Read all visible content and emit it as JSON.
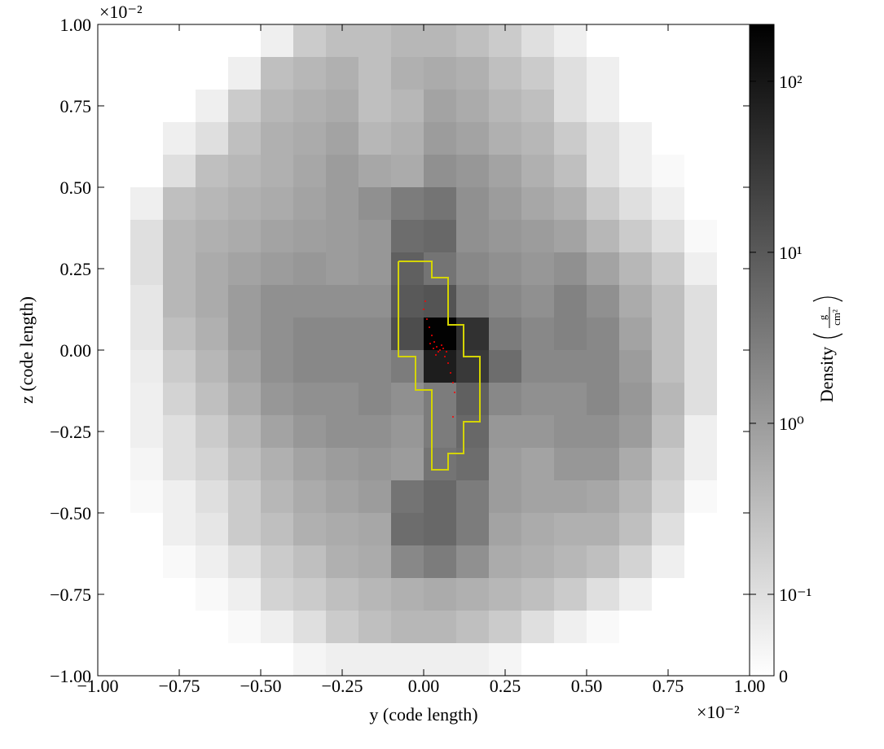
{
  "chart_data": {
    "type": "heatmap",
    "xlabel": "y  (code length)",
    "ylabel": "z  (code length)",
    "x_offset_text": "×10⁻²",
    "y_offset_text": "×10⁻²",
    "xlim": [
      -1,
      1
    ],
    "ylim": [
      -1,
      1
    ],
    "xticks": [
      {
        "value": -1,
        "label": "−1.00"
      },
      {
        "value": -0.75,
        "label": "−0.75"
      },
      {
        "value": -0.5,
        "label": "−0.50"
      },
      {
        "value": -0.25,
        "label": "−0.25"
      },
      {
        "value": 0,
        "label": "0.00"
      },
      {
        "value": 0.25,
        "label": "0.25"
      },
      {
        "value": 0.5,
        "label": "0.50"
      },
      {
        "value": 0.75,
        "label": "0.75"
      },
      {
        "value": 1,
        "label": "1.00"
      }
    ],
    "yticks": [
      {
        "value": -1,
        "label": "−1.00"
      },
      {
        "value": -0.75,
        "label": "−0.75"
      },
      {
        "value": -0.5,
        "label": "−0.50"
      },
      {
        "value": -0.25,
        "label": "−0.25"
      },
      {
        "value": 0,
        "label": "0.00"
      },
      {
        "value": 0.25,
        "label": "0.25"
      },
      {
        "value": 0.5,
        "label": "0.50"
      },
      {
        "value": 0.75,
        "label": "0.75"
      },
      {
        "value": 1,
        "label": "1.00"
      }
    ],
    "colorbar": {
      "label": "Density",
      "units_numerator": "g",
      "units_denominator": "cm²",
      "scale": "symlog",
      "linthresh": 0.1,
      "linscale": 0.476,
      "zlim": [
        0,
        215
      ],
      "ticks": [
        {
          "value": 100,
          "label": "10²"
        },
        {
          "value": 10,
          "label": "10¹"
        },
        {
          "value": 1,
          "label": "10⁰"
        },
        {
          "value": 0.1,
          "label": "10⁻¹"
        },
        0
      ],
      "colors": [
        "#ffffff",
        "#000000"
      ]
    },
    "values": [
      [
        0,
        0,
        0,
        0,
        0,
        0.05,
        0.2,
        0.3,
        0.3,
        0.4,
        0.4,
        0.3,
        0.2,
        0.1,
        0.05,
        0,
        0,
        0,
        0,
        0
      ],
      [
        0,
        0,
        0,
        0,
        0.05,
        0.3,
        0.4,
        0.5,
        0.3,
        0.5,
        0.6,
        0.5,
        0.3,
        0.2,
        0.1,
        0.05,
        0,
        0,
        0,
        0
      ],
      [
        0,
        0,
        0,
        0.05,
        0.2,
        0.4,
        0.5,
        0.6,
        0.3,
        0.4,
        0.8,
        0.6,
        0.4,
        0.3,
        0.1,
        0.05,
        0,
        0,
        0,
        0
      ],
      [
        0,
        0,
        0.05,
        0.1,
        0.3,
        0.5,
        0.6,
        0.8,
        0.4,
        0.5,
        1.0,
        0.8,
        0.5,
        0.4,
        0.2,
        0.1,
        0.05,
        0,
        0,
        0
      ],
      [
        0,
        0,
        0.1,
        0.3,
        0.4,
        0.5,
        0.7,
        1.0,
        0.7,
        0.6,
        1.5,
        1.2,
        0.8,
        0.5,
        0.3,
        0.1,
        0.05,
        0.02,
        0,
        0
      ],
      [
        0,
        0.05,
        0.3,
        0.4,
        0.5,
        0.6,
        0.8,
        1.0,
        1.5,
        3,
        4,
        1.5,
        1.0,
        0.7,
        0.5,
        0.2,
        0.1,
        0.05,
        0,
        0
      ],
      [
        0,
        0.1,
        0.4,
        0.5,
        0.6,
        0.8,
        0.9,
        1.0,
        1.2,
        5,
        6,
        1.5,
        1.2,
        1.0,
        0.8,
        0.4,
        0.2,
        0.1,
        0.02,
        0
      ],
      [
        0,
        0.1,
        0.4,
        0.6,
        0.8,
        1.0,
        1.2,
        1.0,
        1.2,
        8,
        4,
        2,
        1.5,
        1.2,
        1.5,
        0.8,
        0.4,
        0.2,
        0.05,
        0
      ],
      [
        0,
        0.08,
        0.4,
        0.6,
        1.0,
        1.5,
        1.5,
        1.5,
        1.5,
        10,
        12,
        3,
        2,
        1.5,
        2.5,
        1.5,
        0.6,
        0.3,
        0.1,
        0
      ],
      [
        0,
        0.08,
        0.3,
        0.5,
        1.0,
        1.5,
        2,
        2,
        2,
        15,
        200,
        40,
        3,
        2,
        2.5,
        2,
        0.8,
        0.3,
        0.1,
        0
      ],
      [
        0,
        0.06,
        0.2,
        0.4,
        0.8,
        1.5,
        2,
        2,
        2,
        3,
        80,
        30,
        5,
        2,
        2,
        2,
        1.0,
        0.3,
        0.1,
        0
      ],
      [
        0,
        0.05,
        0.15,
        0.3,
        0.6,
        1.2,
        1.5,
        1.5,
        2,
        1.5,
        3,
        8,
        2,
        1.5,
        1.5,
        2,
        1.2,
        0.4,
        0.1,
        0
      ],
      [
        0,
        0.05,
        0.1,
        0.2,
        0.4,
        0.8,
        1.2,
        1.5,
        1.5,
        1.2,
        3,
        6,
        1.2,
        1.2,
        1.5,
        1.5,
        1.0,
        0.3,
        0.05,
        0
      ],
      [
        0,
        0.03,
        0.1,
        0.15,
        0.3,
        0.5,
        0.8,
        1.0,
        1.2,
        1.0,
        4,
        5,
        1.0,
        0.8,
        1.2,
        1.2,
        0.6,
        0.2,
        0.05,
        0
      ],
      [
        0,
        0.02,
        0.05,
        0.1,
        0.2,
        0.4,
        0.6,
        0.8,
        1.0,
        4,
        6,
        3,
        1.0,
        0.8,
        0.8,
        0.7,
        0.4,
        0.15,
        0.02,
        0
      ],
      [
        0,
        0,
        0.05,
        0.08,
        0.2,
        0.3,
        0.5,
        0.6,
        0.7,
        5,
        6,
        3,
        0.8,
        0.6,
        0.5,
        0.5,
        0.3,
        0.1,
        0,
        0
      ],
      [
        0,
        0,
        0.02,
        0.05,
        0.1,
        0.2,
        0.3,
        0.5,
        0.6,
        2,
        3,
        1.5,
        0.6,
        0.5,
        0.4,
        0.3,
        0.15,
        0.05,
        0,
        0
      ],
      [
        0,
        0,
        0,
        0.02,
        0.05,
        0.15,
        0.2,
        0.3,
        0.4,
        0.5,
        0.6,
        0.5,
        0.4,
        0.3,
        0.2,
        0.1,
        0.05,
        0,
        0,
        0
      ],
      [
        0,
        0,
        0,
        0,
        0.02,
        0.05,
        0.1,
        0.2,
        0.3,
        0.4,
        0.4,
        0.3,
        0.2,
        0.1,
        0.05,
        0.02,
        0,
        0,
        0,
        0
      ],
      [
        0,
        0,
        0,
        0,
        0,
        0,
        0.03,
        0.05,
        0.05,
        0.05,
        0.05,
        0.05,
        0.03,
        0,
        0,
        0,
        0,
        0,
        0,
        0
      ]
    ]
  }
}
